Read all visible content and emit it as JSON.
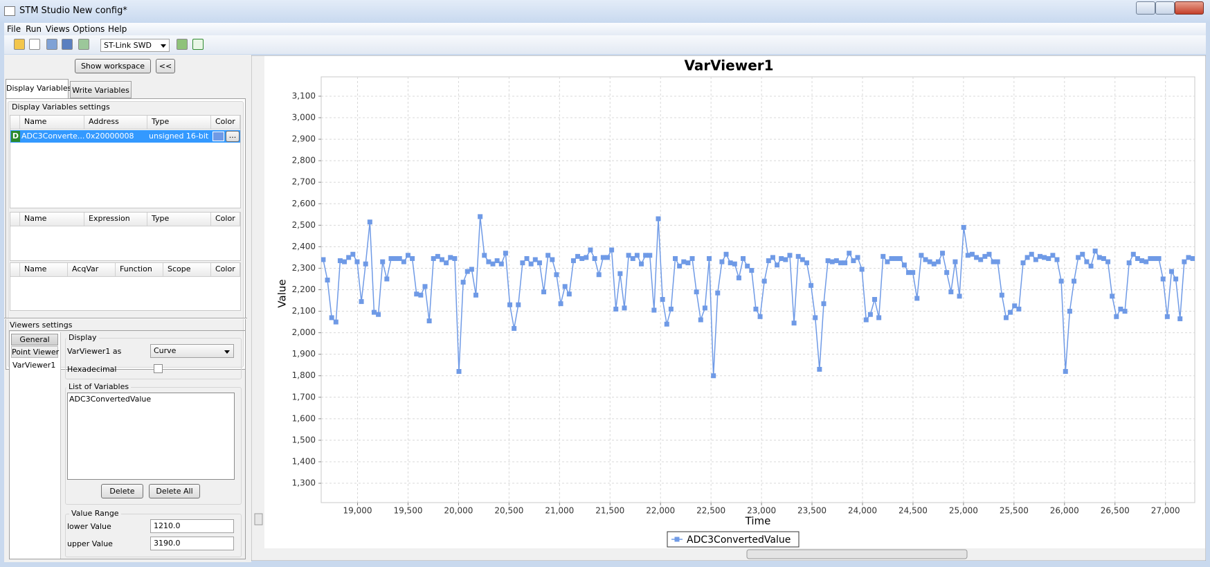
{
  "window": {
    "title": "STM Studio New config*"
  },
  "menu": [
    "File",
    "Run",
    "Views",
    "Options",
    "Help"
  ],
  "toolbar": {
    "probe": "ST-Link SWD"
  },
  "workspace": {
    "show_button": "Show workspace",
    "collapse_button": "<<"
  },
  "tabs": [
    "Display Variables",
    "Write Variables"
  ],
  "display_settings": {
    "title": "Display Variables settings",
    "variables_table": {
      "headers": [
        "Name",
        "Address",
        "Type",
        "Color"
      ],
      "rows": [
        [
          "D",
          "ADC3Converte...",
          "0x20000008",
          "unsigned 16-bit"
        ]
      ],
      "color_button": "..."
    },
    "expressions_table": {
      "headers": [
        "Name",
        "Expression",
        "Type",
        "Color"
      ]
    },
    "functions_table": {
      "headers": [
        "Name",
        "AcqVar",
        "Function",
        "Scope",
        "Color"
      ]
    }
  },
  "viewers_settings": {
    "title": "Viewers settings",
    "tree": [
      "General",
      "Point Viewer",
      "VarViewer1"
    ],
    "display": {
      "title": "Display",
      "as_label": "VarViewer1 as",
      "as_value": "Curve",
      "hex_label": "Hexadecimal"
    },
    "list": {
      "title": "List of Variables",
      "items": [
        "ADC3ConvertedValue"
      ],
      "buttons": [
        "Delete",
        "Delete All"
      ]
    },
    "value_range": {
      "title": "Value Range",
      "lower_label": "lower Value",
      "lower_value": "1210.0",
      "upper_label": "upper Value",
      "upper_value": "3190.0"
    }
  },
  "chart_data": {
    "type": "line",
    "title": "VarViewer1",
    "x_label": "Time",
    "y_label": "Value",
    "grid": true,
    "legend": "bottom",
    "x": [
      18660,
      18702,
      18744,
      18786,
      18828,
      18870,
      18912,
      18954,
      18996,
      19038,
      19080,
      19122,
      19164,
      19206,
      19248,
      19290,
      19332,
      19374,
      19416,
      19458,
      19500,
      19542,
      19584,
      19626,
      19668,
      19710,
      19752,
      19794,
      19836,
      19878,
      19920,
      19962,
      20004,
      20046,
      20088,
      20130,
      20172,
      20214,
      20256,
      20298,
      20340,
      20382,
      20424,
      20466,
      20508,
      20550,
      20592,
      20634,
      20676,
      20718,
      20760,
      20802,
      20844,
      20886,
      20928,
      20970,
      21012,
      21054,
      21096,
      21138,
      21180,
      21222,
      21264,
      21306,
      21348,
      21390,
      21432,
      21474,
      21516,
      21558,
      21600,
      21642,
      21684,
      21726,
      21768,
      21810,
      21852,
      21894,
      21936,
      21978,
      22020,
      22062,
      22104,
      22146,
      22188,
      22230,
      22272,
      22314,
      22356,
      22398,
      22440,
      22482,
      22524,
      22566,
      22608,
      22650,
      22692,
      22734,
      22776,
      22818,
      22860,
      22902,
      22944,
      22986,
      23028,
      23070,
      23112,
      23154,
      23196,
      23238,
      23280,
      23322,
      23364,
      23406,
      23448,
      23490,
      23532,
      23574,
      23616,
      23658,
      23700,
      23742,
      23784,
      23826,
      23868,
      23910,
      23952,
      23994,
      24036,
      24078,
      24120,
      24162,
      24204,
      24246,
      24288,
      24330,
      24372,
      24414,
      24456,
      24498,
      24540,
      24582,
      24624,
      24666,
      24708,
      24750,
      24792,
      24834,
      24876,
      24918,
      24960,
      25002,
      25044,
      25086,
      25128,
      25170,
      25212,
      25254,
      25296,
      25338,
      25380,
      25422,
      25464,
      25506,
      25548,
      25590,
      25632,
      25674,
      25716,
      25758,
      25800,
      25842,
      25884,
      25926,
      25968,
      26010,
      26052,
      26094,
      26136,
      26178,
      26220,
      26262,
      26304,
      26346,
      26388,
      26430,
      26472,
      26514,
      26556,
      26598,
      26640,
      26682,
      26724,
      26766,
      26808,
      26850,
      26892,
      26934,
      26976,
      27018,
      27060,
      27102,
      27144,
      27186,
      27228,
      27270
    ],
    "series": [
      {
        "name": "ADC3ConvertedValue",
        "color": "#6f9ae6",
        "values": [
          2340,
          2245,
          2070,
          2050,
          2335,
          2330,
          2350,
          2365,
          2330,
          2145,
          2320,
          2515,
          2095,
          2085,
          2330,
          2250,
          2345,
          2345,
          2345,
          2330,
          2360,
          2345,
          2180,
          2175,
          2215,
          2055,
          2345,
          2355,
          2340,
          2325,
          2350,
          2345,
          1820,
          2235,
          2285,
          2295,
          2175,
          2540,
          2360,
          2330,
          2320,
          2335,
          2320,
          2370,
          2130,
          2020,
          2130,
          2325,
          2345,
          2320,
          2340,
          2325,
          2190,
          2360,
          2340,
          2270,
          2135,
          2215,
          2180,
          2335,
          2355,
          2345,
          2350,
          2385,
          2345,
          2270,
          2350,
          2350,
          2385,
          2110,
          2275,
          2115,
          2360,
          2345,
          2360,
          2320,
          2360,
          2360,
          2105,
          2530,
          2155,
          2040,
          2110,
          2345,
          2310,
          2330,
          2325,
          2345,
          2190,
          2060,
          2115,
          2345,
          1800,
          2185,
          2330,
          2365,
          2325,
          2320,
          2255,
          2345,
          2310,
          2290,
          2110,
          2075,
          2240,
          2335,
          2350,
          2315,
          2345,
          2340,
          2360,
          2045,
          2355,
          2340,
          2325,
          2220,
          2070,
          1830,
          2135,
          2335,
          2330,
          2335,
          2325,
          2325,
          2370,
          2335,
          2350,
          2295,
          2060,
          2085,
          2155,
          2070,
          2355,
          2330,
          2345,
          2345,
          2345,
          2315,
          2280,
          2280,
          2160,
          2360,
          2340,
          2330,
          2320,
          2330,
          2370,
          2280,
          2190,
          2330,
          2170,
          2490,
          2360,
          2365,
          2350,
          2340,
          2355,
          2365,
          2330,
          2330,
          2175,
          2070,
          2095,
          2125,
          2110,
          2325,
          2350,
          2365,
          2340,
          2355,
          2350,
          2345,
          2360,
          2340,
          2240,
          1820,
          2100,
          2240,
          2350,
          2365,
          2330,
          2310,
          2380,
          2350,
          2345,
          2330,
          2170,
          2075,
          2110,
          2100,
          2325,
          2365,
          2345,
          2335,
          2330,
          2345,
          2345,
          2345,
          2250,
          2075,
          2285,
          2250,
          2065,
          2330,
          2350,
          2345
        ]
      }
    ],
    "xlim": [
      18640,
      27290
    ],
    "xticks": [
      {
        "value": 19000,
        "label": "19,000"
      },
      {
        "value": 19500,
        "label": "19,500"
      },
      {
        "value": 20000,
        "label": "20,000"
      },
      {
        "value": 20500,
        "label": "20,500"
      },
      {
        "value": 21000,
        "label": "21,000"
      },
      {
        "value": 21500,
        "label": "21,500"
      },
      {
        "value": 22000,
        "label": "22,000"
      },
      {
        "value": 22500,
        "label": "22,500"
      },
      {
        "value": 23000,
        "label": "23,000"
      },
      {
        "value": 23500,
        "label": "23,500"
      },
      {
        "value": 24000,
        "label": "24,000"
      },
      {
        "value": 24500,
        "label": "24,500"
      },
      {
        "value": 25000,
        "label": "25,000"
      },
      {
        "value": 25500,
        "label": "25,500"
      },
      {
        "value": 26000,
        "label": "26,000"
      },
      {
        "value": 26500,
        "label": "26,500"
      },
      {
        "value": 27000,
        "label": "27,000"
      }
    ],
    "ylim": [
      1210,
      3190
    ],
    "yticks": [
      {
        "value": 1300,
        "label": "1,300"
      },
      {
        "value": 1400,
        "label": "1,400"
      },
      {
        "value": 1500,
        "label": "1,500"
      },
      {
        "value": 1600,
        "label": "1,600"
      },
      {
        "value": 1700,
        "label": "1,700"
      },
      {
        "value": 1800,
        "label": "1,800"
      },
      {
        "value": 1900,
        "label": "1,900"
      },
      {
        "value": 2000,
        "label": "2,000"
      },
      {
        "value": 2100,
        "label": "2,100"
      },
      {
        "value": 2200,
        "label": "2,200"
      },
      {
        "value": 2300,
        "label": "2,300"
      },
      {
        "value": 2400,
        "label": "2,400"
      },
      {
        "value": 2500,
        "label": "2,500"
      },
      {
        "value": 2600,
        "label": "2,600"
      },
      {
        "value": 2700,
        "label": "2,700"
      },
      {
        "value": 2800,
        "label": "2,800"
      },
      {
        "value": 2900,
        "label": "2,900"
      },
      {
        "value": 3000,
        "label": "3,000"
      },
      {
        "value": 3100,
        "label": "3,100"
      }
    ]
  }
}
